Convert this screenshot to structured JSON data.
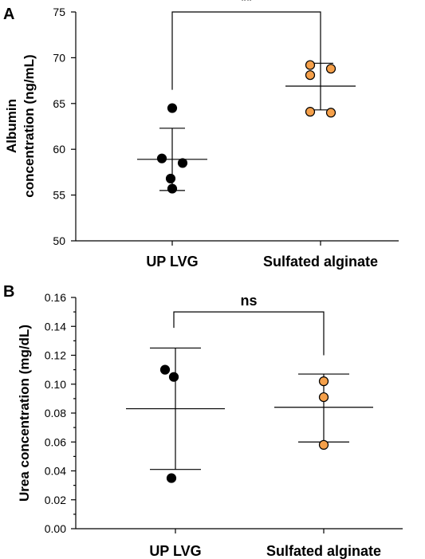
{
  "colors": {
    "UP LVG": "#000000",
    "Sulfated alginate": "#f5a04a"
  },
  "chart_data": [
    {
      "type": "scatter",
      "panel": "A",
      "ylabel_lines": [
        "Albumin",
        "concentration (ng/mL)"
      ],
      "ylim": [
        50,
        75
      ],
      "yticks": [
        50,
        55,
        60,
        65,
        70,
        75
      ],
      "ytick_labels": [
        "50",
        "55",
        "60",
        "65",
        "70",
        "75"
      ],
      "categories": [
        "UP LVG",
        "Sulfated alginate"
      ],
      "groups": [
        {
          "category": "UP LVG",
          "points": [
            64.5,
            59.0,
            58.5,
            56.8,
            55.7
          ],
          "mean": 58.9,
          "sd_upper": 62.3,
          "sd_lower": 55.5
        },
        {
          "category": "Sulfated alginate",
          "points": [
            69.2,
            68.8,
            68.1,
            64.1,
            64.0
          ],
          "mean": 66.9,
          "sd_upper": 69.4,
          "sd_lower": 64.3
        }
      ],
      "significance": {
        "label": "**",
        "left_end": 66.5,
        "right_end": 69.4,
        "top": 75
      }
    },
    {
      "type": "scatter",
      "panel": "B",
      "ylabel_lines": [
        "Urea concentration (mg/dL)"
      ],
      "ylim": [
        0,
        0.16
      ],
      "yticks": [
        0,
        0.02,
        0.04,
        0.06,
        0.08,
        0.1,
        0.12,
        0.14,
        0.16
      ],
      "ytick_labels": [
        "0.00",
        "0.02",
        "0.04",
        "0.06",
        "0.08",
        "0.10",
        "0.12",
        "0.14",
        "0.16"
      ],
      "categories": [
        "UP LVG",
        "Sulfated alginate"
      ],
      "groups": [
        {
          "category": "UP LVG",
          "points": [
            0.11,
            0.105,
            0.035
          ],
          "mean": 0.083,
          "sd_upper": 0.125,
          "sd_lower": 0.041
        },
        {
          "category": "Sulfated alginate",
          "points": [
            0.102,
            0.091,
            0.058
          ],
          "mean": 0.084,
          "sd_upper": 0.107,
          "sd_lower": 0.06
        }
      ],
      "significance": {
        "label": "ns",
        "left_end": 0.139,
        "right_end": 0.12,
        "top": 0.15
      }
    }
  ]
}
